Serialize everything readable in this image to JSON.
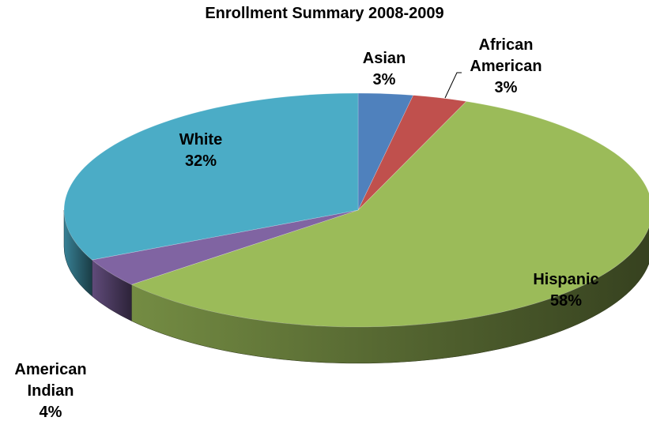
{
  "chart_data": {
    "type": "pie",
    "title": "Enrollment Summary 2008-2009",
    "three_d": true,
    "slices": [
      {
        "name": "Asian",
        "label": "3%",
        "value": 3,
        "color": "#4f81bd"
      },
      {
        "name": "African American",
        "label": "3%",
        "value": 3,
        "color": "#c0504d"
      },
      {
        "name": "Hispanic",
        "label": "58%",
        "value": 58,
        "color": "#9bbb59"
      },
      {
        "name": "American Indian",
        "label": "4%",
        "value": 4,
        "color": "#8064a2"
      },
      {
        "name": "White",
        "label": "32%",
        "value": 32,
        "color": "#4bacc6"
      }
    ]
  }
}
